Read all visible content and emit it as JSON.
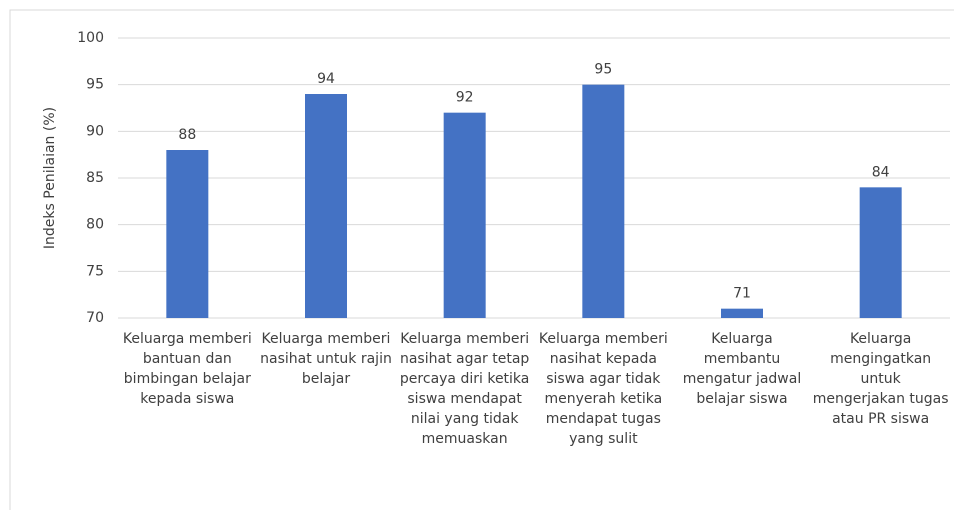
{
  "chart_data": {
    "type": "bar",
    "y_label": "Indeks Penilaian (%)",
    "categories": [
      "Keluarga memberi bantuan dan bimbingan belajar kepada siswa",
      "Keluarga memberi nasihat untuk rajin belajar",
      "Keluarga memberi nasihat agar tetap percaya diri ketika siswa mendapat nilai yang tidak memuaskan",
      "Keluarga memberi nasihat kepada siswa agar tidak menyerah ketika mendapat tugas yang sulit",
      "Keluarga membantu mengatur jadwal belajar siswa",
      "Keluarga mengingatkan untuk mengerjakan tugas atau PR siswa"
    ],
    "values": [
      88,
      94,
      92,
      95,
      71,
      84
    ],
    "color": "#4472c4",
    "ylim": [
      70,
      100
    ],
    "yticks": [
      70,
      75,
      80,
      85,
      90,
      95,
      100
    ],
    "grid": true
  }
}
